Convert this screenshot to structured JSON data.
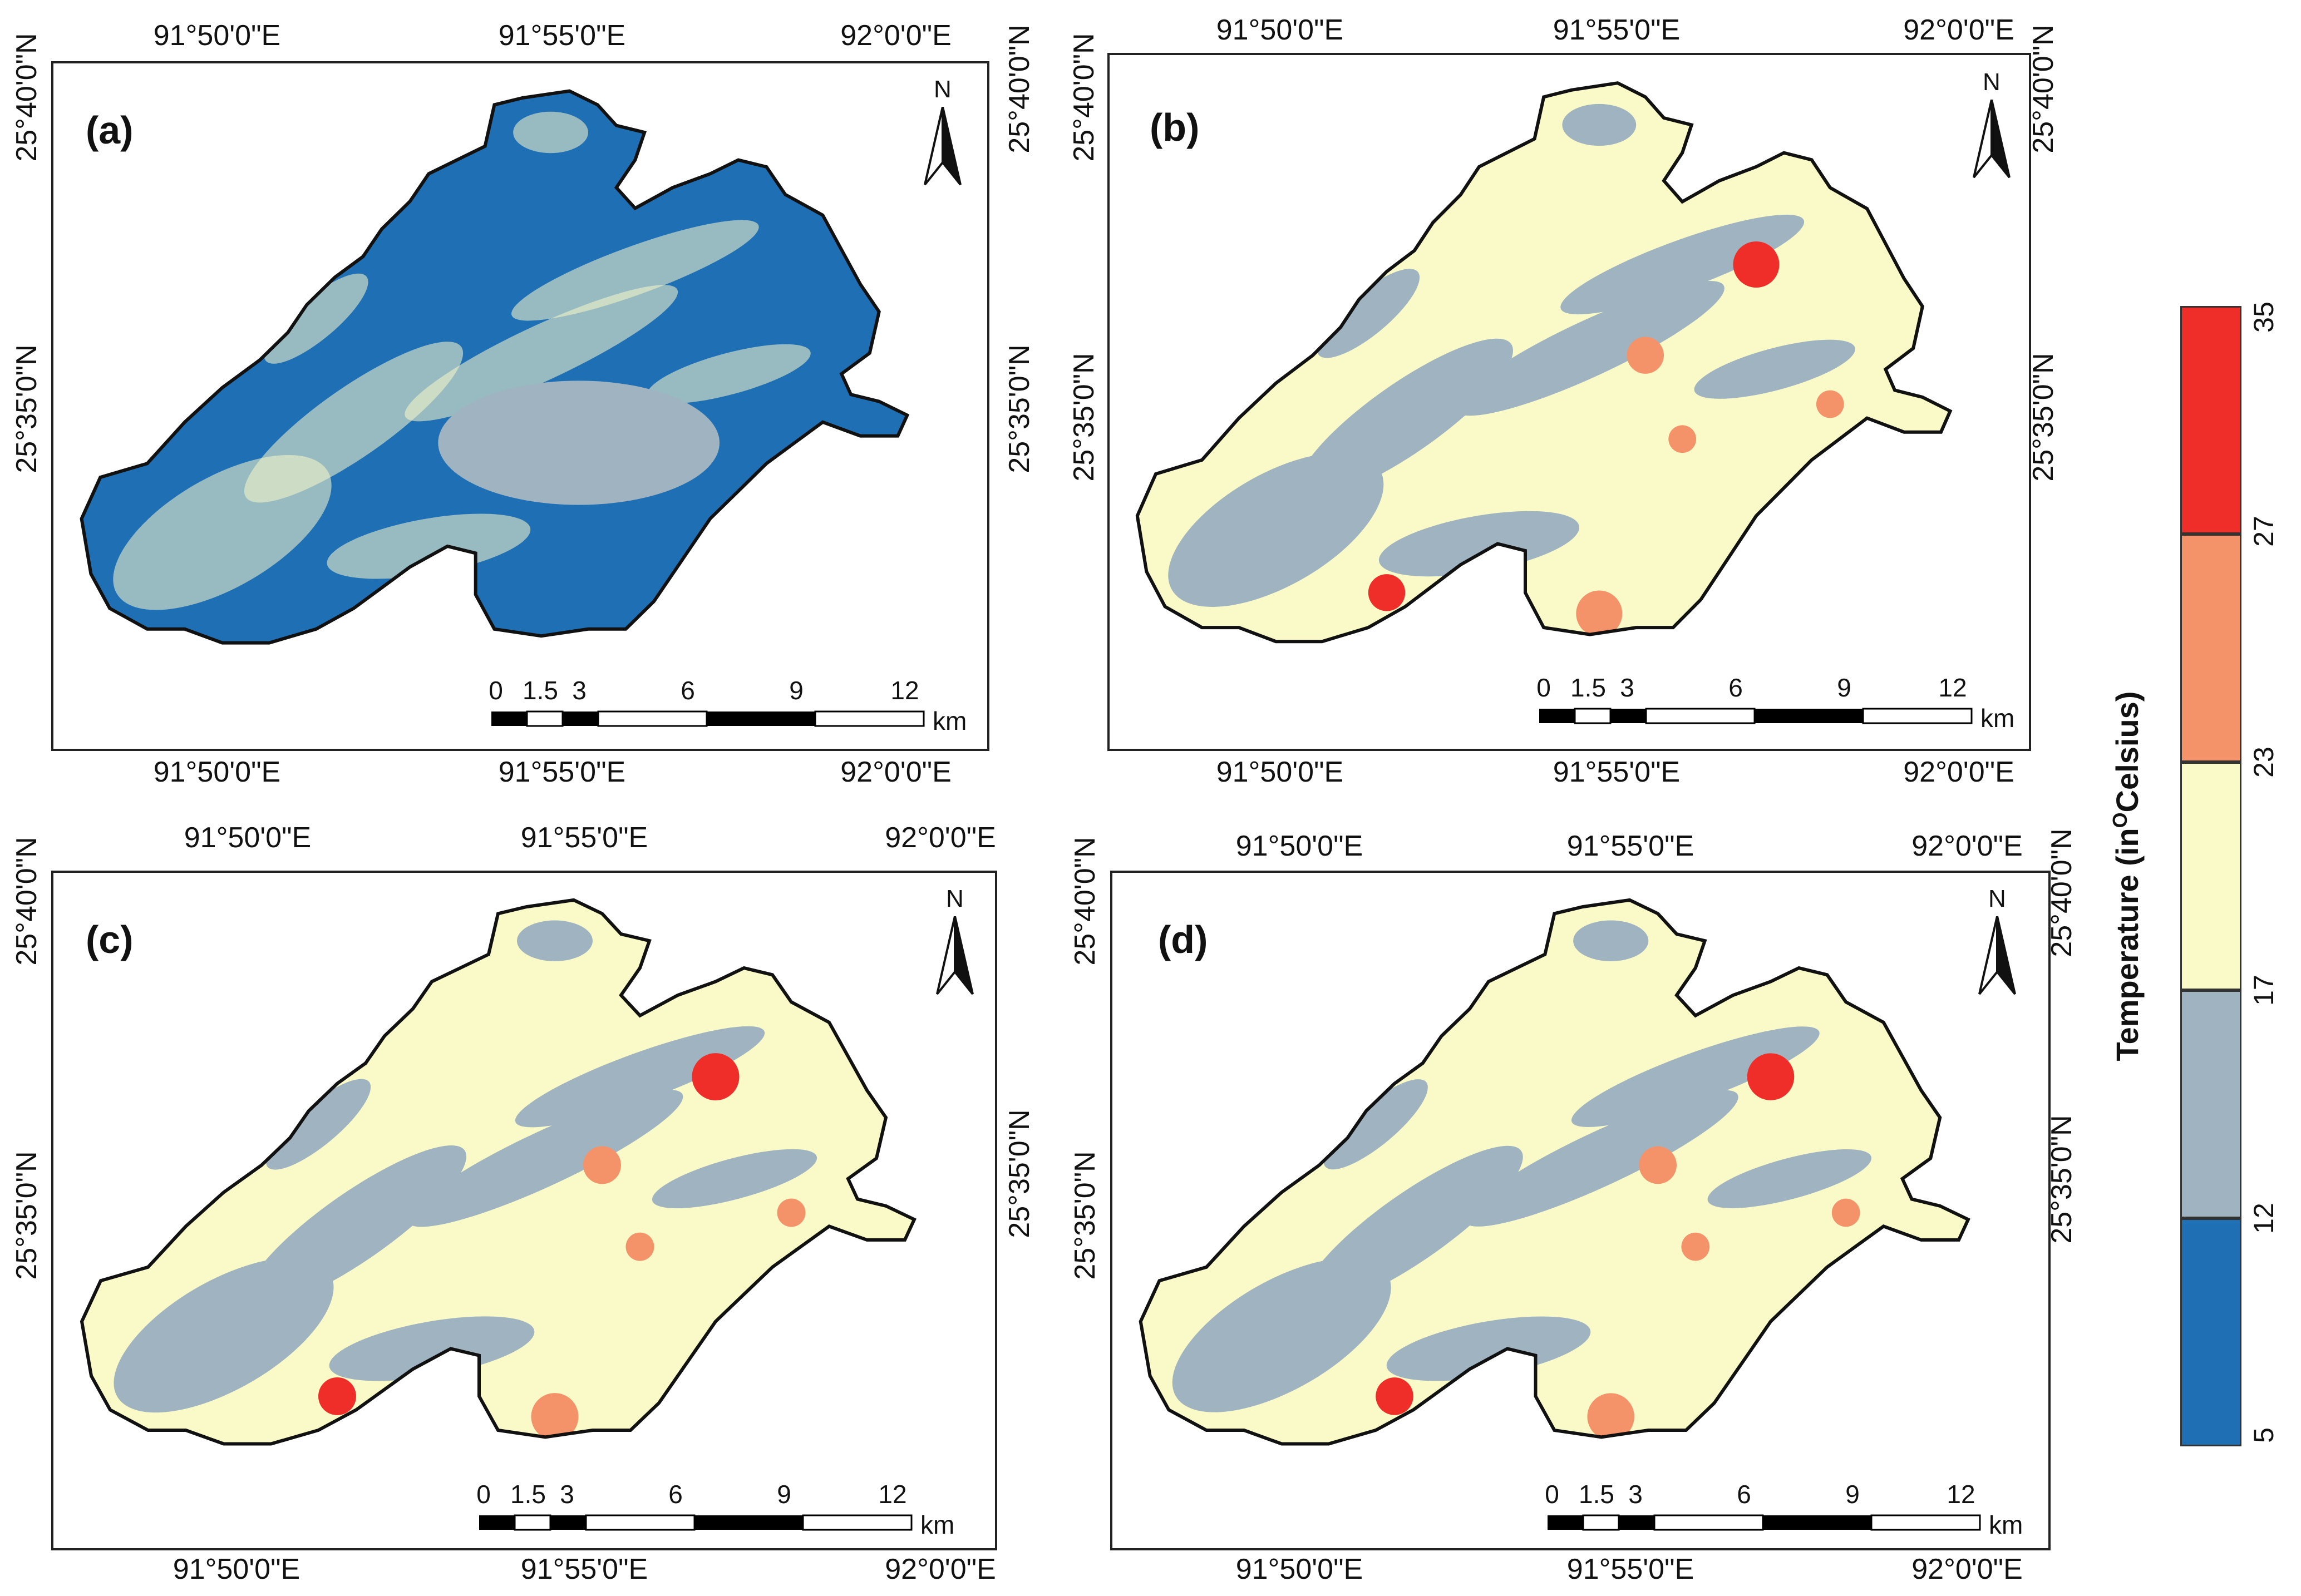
{
  "coordinates": {
    "lon": [
      "91°50'0\"E",
      "91°55'0\"E",
      "92°0'0\"E"
    ],
    "lat": [
      "25°40'0\"N",
      "25°35'0\"N"
    ]
  },
  "panels": [
    {
      "letter": "(a)",
      "dominant_class": "class_5_12"
    },
    {
      "letter": "(b)",
      "dominant_class": "class_17_23"
    },
    {
      "letter": "(c)",
      "dominant_class": "class_17_23"
    },
    {
      "letter": "(d)",
      "dominant_class": "class_17_23"
    }
  ],
  "north_arrow": {
    "label": "N"
  },
  "scale": {
    "ticks": [
      "0",
      "1.5",
      "3",
      "6",
      "9",
      "12"
    ],
    "unit": "km"
  },
  "legend": {
    "title_prefix": "Temperature (in",
    "title_sup": "O",
    "title_suffix": "Celsius)",
    "ticks": [
      "5",
      "12",
      "17",
      "23",
      "27",
      "35"
    ],
    "classes": [
      {
        "range": "5-12",
        "color": "#1f6fb5"
      },
      {
        "range": "12-17",
        "color": "#9fb3c0"
      },
      {
        "range": "17-23",
        "color": "#fafac8"
      },
      {
        "range": "23-27",
        "color": "#f4936a"
      },
      {
        "range": "27-35",
        "color": "#ef2e2a"
      }
    ]
  }
}
